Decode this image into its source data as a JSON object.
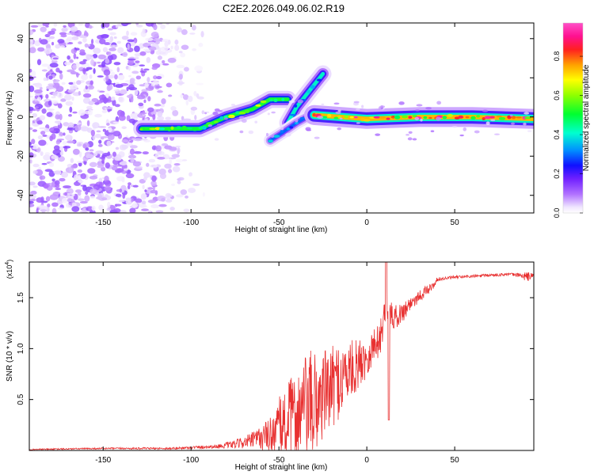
{
  "figure_title": "C2E2.2026.049.06.02.R19",
  "chart_data": [
    {
      "type": "heatmap",
      "title": "C2E2.2026.049.06.02.R19",
      "xlabel": "Height of straight line (km)",
      "ylabel": "Frequency (Hz)",
      "xlim": [
        -192,
        95
      ],
      "ylim": [
        -49,
        48
      ],
      "xticks": [
        -150,
        -100,
        -50,
        0,
        50
      ],
      "yticks": [
        -40,
        -20,
        0,
        20,
        40
      ],
      "colorbar": {
        "label": "Normalized spectral amplitude",
        "range": [
          0,
          0.97
        ],
        "ticks": [
          0.0,
          0.2,
          0.4,
          0.6,
          0.8
        ],
        "colormap": [
          "#ffffff",
          "#e8d8ff",
          "#b070ff",
          "#7030ff",
          "#1010ff",
          "#00a0ff",
          "#00ffc0",
          "#00ff40",
          "#80ff00",
          "#ffff00",
          "#ffa000",
          "#ff2020",
          "#ff20a0",
          "#ff40c0"
        ]
      },
      "features": [
        {
          "name": "noise region",
          "x_range": [
            -192,
            -96
          ],
          "y_range": [
            -49,
            48
          ],
          "amplitude": 0.15
        },
        {
          "name": "low-frequency track",
          "points": [
            [
              -128,
              -6
            ],
            [
              -95,
              -6
            ],
            [
              -80,
              0
            ],
            [
              -65,
              4
            ],
            [
              -55,
              9
            ],
            [
              -45,
              9
            ]
          ],
          "amplitude": 0.55
        },
        {
          "name": "rising chirp",
          "points": [
            [
              -45,
              -3
            ],
            [
              -40,
              5
            ],
            [
              -33,
              13
            ],
            [
              -25,
              22
            ]
          ],
          "amplitude": 0.45
        },
        {
          "name": "descending branch",
          "points": [
            [
              -55,
              -12
            ],
            [
              -48,
              -8
            ],
            [
              -40,
              -3
            ],
            [
              -30,
              2
            ]
          ],
          "amplitude": 0.35
        },
        {
          "name": "steady carrier",
          "points": [
            [
              -30,
              1
            ],
            [
              0,
              -1
            ],
            [
              30,
              0
            ],
            [
              60,
              0
            ],
            [
              95,
              -1
            ]
          ],
          "amplitude": 0.75
        }
      ]
    },
    {
      "type": "line",
      "xlabel": "Height of straight line (km)",
      "ylabel": "SNR (10 * v/v)",
      "multiplier_label": "(x10",
      "multiplier_exponent": "4",
      "multiplier_close": ")",
      "xlim": [
        -192,
        95
      ],
      "ylim": [
        0,
        1.85
      ],
      "xticks": [
        -150,
        -100,
        -50,
        0,
        50
      ],
      "yticks": [
        0.5,
        1.0,
        1.5
      ],
      "ytick_labels": [
        "0.5",
        "1.0",
        "1.5"
      ],
      "series": [
        {
          "name": "SNR",
          "color": "#e83030",
          "x": [
            -192,
            -150,
            -110,
            -85,
            -75,
            -65,
            -55,
            -50,
            -45,
            -40,
            -35,
            -30,
            -25,
            -20,
            -15,
            -10,
            -5,
            0,
            5,
            8,
            10,
            12,
            15,
            20,
            25,
            30,
            35,
            38,
            40,
            50,
            60,
            70,
            80,
            88,
            90,
            95
          ],
          "base": [
            0.01,
            0.02,
            0.02,
            0.04,
            0.06,
            0.1,
            0.15,
            0.22,
            0.28,
            0.33,
            0.4,
            0.45,
            0.55,
            0.62,
            0.7,
            0.78,
            0.84,
            0.92,
            1.05,
            1.12,
            1.35,
            1.4,
            1.3,
            1.35,
            1.45,
            1.52,
            1.58,
            1.62,
            1.68,
            1.7,
            1.71,
            1.72,
            1.73,
            1.72,
            1.7,
            1.72
          ],
          "noise": [
            0.005,
            0.008,
            0.01,
            0.02,
            0.04,
            0.08,
            0.18,
            0.3,
            0.4,
            0.45,
            0.55,
            0.55,
            0.45,
            0.4,
            0.38,
            0.3,
            0.25,
            0.2,
            0.18,
            0.18,
            0.15,
            0.12,
            0.12,
            0.1,
            0.08,
            0.06,
            0.05,
            0.03,
            0.02,
            0.015,
            0.015,
            0.015,
            0.015,
            0.02,
            0.06,
            0.02
          ]
        }
      ]
    }
  ]
}
